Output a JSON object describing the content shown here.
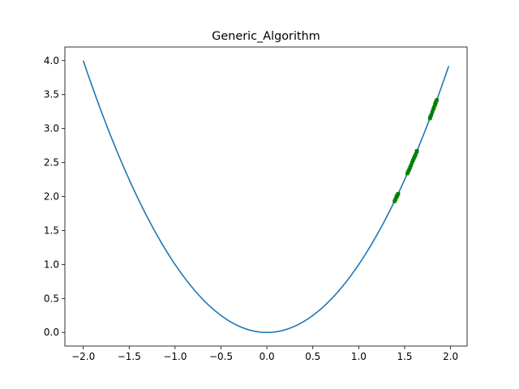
{
  "chart_data": {
    "type": "line",
    "title": "Generic_Algorithm",
    "xlabel": "",
    "ylabel": "",
    "xlim": [
      -2.2,
      2.18
    ],
    "ylim": [
      -0.2,
      4.2
    ],
    "grid": false,
    "x_ticks": [
      -2.0,
      -1.5,
      -1.0,
      -0.5,
      0.0,
      0.5,
      1.0,
      1.5,
      2.0
    ],
    "x_tick_labels": [
      "−2.0",
      "−1.5",
      "−1.0",
      "−0.5",
      "0.0",
      "0.5",
      "1.0",
      "1.5",
      "2.0"
    ],
    "y_ticks": [
      0.0,
      0.5,
      1.0,
      1.5,
      2.0,
      2.5,
      3.0,
      3.5,
      4.0
    ],
    "y_tick_labels": [
      "0.0",
      "0.5",
      "1.0",
      "1.5",
      "2.0",
      "2.5",
      "3.0",
      "3.5",
      "4.0"
    ],
    "series": [
      {
        "kind": "line",
        "color": "#1f77b4",
        "function": "y = x^2",
        "x_range": [
          -2.0,
          1.98
        ]
      },
      {
        "kind": "scatter",
        "color": "#008000",
        "marker": "square",
        "points": [
          [
            1.4,
            1.96
          ],
          [
            1.41,
            1.99
          ],
          [
            1.42,
            2.02
          ],
          [
            1.43,
            2.04
          ],
          [
            1.39,
            1.93
          ],
          [
            1.415,
            2.0
          ],
          [
            1.53,
            2.34
          ],
          [
            1.54,
            2.37
          ],
          [
            1.55,
            2.4
          ],
          [
            1.56,
            2.43
          ],
          [
            1.57,
            2.46
          ],
          [
            1.58,
            2.5
          ],
          [
            1.59,
            2.53
          ],
          [
            1.6,
            2.56
          ],
          [
            1.61,
            2.59
          ],
          [
            1.62,
            2.62
          ],
          [
            1.63,
            2.66
          ],
          [
            1.635,
            2.67
          ],
          [
            1.775,
            3.15
          ],
          [
            1.78,
            3.17
          ],
          [
            1.79,
            3.2
          ],
          [
            1.8,
            3.24
          ],
          [
            1.81,
            3.28
          ],
          [
            1.82,
            3.31
          ],
          [
            1.83,
            3.35
          ],
          [
            1.835,
            3.37
          ],
          [
            1.84,
            3.39
          ],
          [
            1.85,
            3.42
          ]
        ]
      }
    ]
  }
}
